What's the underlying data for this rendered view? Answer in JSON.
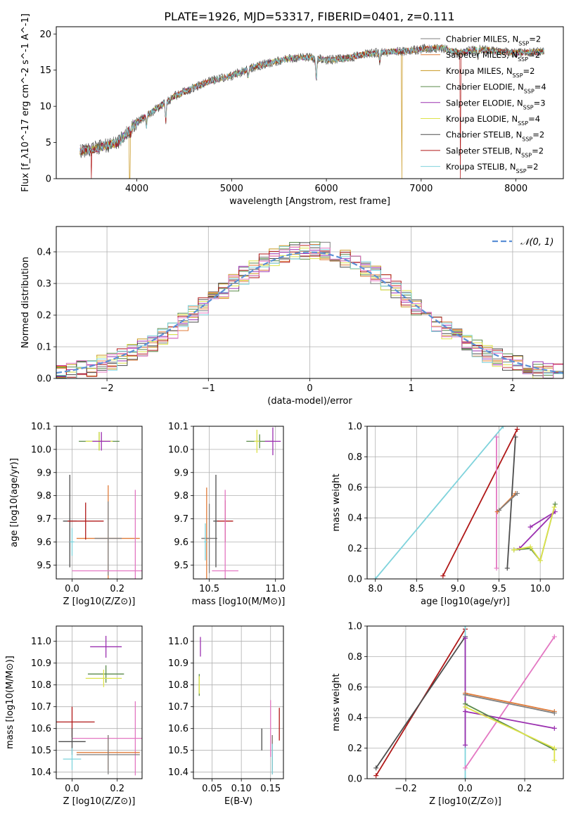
{
  "title": "PLATE=1926, MJD=53317, FIBERID=0401, z=0.111",
  "colors": {
    "chabrier_miles": "#7f7f7f",
    "salpeter_miles": "#e07b39",
    "kroupa_miles": "#c8961e",
    "chabrier_elodie": "#5a8a4a",
    "salpeter_elodie": "#9b30b0",
    "kroupa_elodie": "#dde34a",
    "chabrier_stelib": "#4d4d4d",
    "salpeter_stelib": "#b01818",
    "kroupa_stelib": "#7fd3dc",
    "pink": "#e377c2",
    "gaussian": "#5b8fd6"
  },
  "chart_data": [
    {
      "id": "spectrum",
      "type": "line",
      "xlabel": "wavelength [Angstrom, rest frame]",
      "ylabel": "Flux [f_λ10^-17 erg cm^-2 s^-1 A^-1]",
      "xlim": [
        3150,
        8500
      ],
      "ylim": [
        0,
        21
      ],
      "xticks": [
        "4000",
        "5000",
        "6000",
        "7000",
        "8000"
      ],
      "yticks": [
        "0",
        "5",
        "10",
        "15",
        "20"
      ],
      "legend_position": "right",
      "legend": [
        "Chabrier MILES, N_SSP=2",
        "Salpeter MILES, N_SSP=2",
        "Kroupa MILES, N_SSP=2",
        "Chabrier ELODIE, N_SSP=4",
        "Salpeter ELODIE, N_SSP=3",
        "Kroupa ELODIE, N_SSP=4",
        "Chabrier STELIB, N_SSP=2",
        "Salpeter STELIB, N_SSP=2",
        "Kroupa STELIB, N_SSP=2"
      ],
      "continuum": {
        "x": [
          3400,
          3600,
          3800,
          4000,
          4200,
          4400,
          4600,
          4800,
          5000,
          5200,
          5400,
          5600,
          5800,
          6000,
          6200,
          6400,
          6600,
          6800,
          7000,
          7200,
          7400,
          7600,
          7800,
          8000,
          8200,
          8300
        ],
        "y": [
          3.8,
          4.3,
          5.0,
          7.8,
          9.6,
          11.4,
          12.6,
          13.6,
          14.2,
          15.3,
          16.0,
          16.6,
          16.8,
          16.4,
          16.6,
          17.2,
          17.5,
          17.6,
          17.9,
          18.1,
          17.4,
          17.9,
          17.6,
          17.4,
          17.5,
          17.6
        ]
      },
      "features": [
        {
          "x": 3934,
          "y": 6.2
        },
        {
          "x": 4102,
          "y": 7.3
        },
        {
          "x": 4305,
          "y": 8.0
        },
        {
          "x": 5175,
          "y": 14.2
        },
        {
          "x": 5893,
          "y": 13.8
        },
        {
          "x": 6563,
          "y": 16.2
        },
        {
          "x": 7600,
          "y": 16.8
        }
      ],
      "drops": [
        {
          "x": 3520,
          "series": 7
        },
        {
          "x": 3925,
          "series": 2
        },
        {
          "x": 6795,
          "series": 2
        },
        {
          "x": 7415,
          "series": 7
        }
      ]
    },
    {
      "id": "residuals",
      "type": "step",
      "xlabel": "(data-model)/error",
      "ylabel": "Normed distribution",
      "xlim": [
        -2.5,
        2.5
      ],
      "ylim": [
        0,
        0.48
      ],
      "xticks": [
        "−2",
        "−1",
        "0",
        "1",
        "2"
      ],
      "yticks": [
        "0.0",
        "0.1",
        "0.2",
        "0.3",
        "0.4"
      ],
      "legend": [
        "𝒩(0, 1)"
      ],
      "bin_width": 0.1,
      "bin_start": -2.5,
      "bins": 50
    },
    {
      "id": "age_vs_Z",
      "type": "scatter",
      "xlabel": "Z [log10(Z/Z⊙)]",
      "ylabel": "age [log10(age/yr)]",
      "xlim": [
        -0.07,
        0.31
      ],
      "ylim": [
        9.44,
        10.1
      ],
      "xticks": [
        "0.0",
        "0.2"
      ],
      "yticks": [
        "9.5",
        "9.6",
        "9.7",
        "9.8",
        "9.9",
        "10.0",
        "10.1"
      ],
      "points": [
        {
          "x": 0.12,
          "y": 10.035,
          "xerr": 0.09,
          "yerr": 0.04,
          "c": "chabrier_elodie"
        },
        {
          "x": 0.12,
          "y": 10.035,
          "xerr": 0.06,
          "yerr": 0.04,
          "c": "kroupa_elodie"
        },
        {
          "x": 0.13,
          "y": 10.035,
          "xerr": 0.04,
          "yerr": 0.04,
          "c": "salpeter_elodie"
        },
        {
          "x": 0.16,
          "y": 9.615,
          "xerr": 0.14,
          "yerr": 0.23,
          "c": "salpeter_miles"
        },
        {
          "x": 0.16,
          "y": 9.615,
          "xerr": 0.06,
          "yerr": 0.16,
          "c": "chabrier_miles"
        },
        {
          "x": -0.01,
          "y": 9.69,
          "xerr": 0.03,
          "yerr": 0.2,
          "c": "chabrier_stelib"
        },
        {
          "x": 0.06,
          "y": 9.69,
          "xerr": 0.08,
          "yerr": 0.08,
          "c": "salpeter_stelib"
        },
        {
          "x": 0.0,
          "y": 9.6,
          "xerr": 0.01,
          "yerr": 0.06,
          "c": "kroupa_stelib"
        },
        {
          "x": 0.28,
          "y": 9.475,
          "xerr": 0.28,
          "yerr": 0.35,
          "c": "pink"
        }
      ]
    },
    {
      "id": "age_vs_mass",
      "type": "scatter",
      "xlabel": "mass [log10(M/M⊙)]",
      "ylabel": "",
      "xlim": [
        10.38,
        11.06
      ],
      "ylim": [
        9.44,
        10.1
      ],
      "xticks": [
        "10.5",
        "11.0"
      ],
      "yticks": [
        "9.5",
        "9.6",
        "9.7",
        "9.8",
        "9.9",
        "10.0",
        "10.1"
      ],
      "points": [
        {
          "x": 10.88,
          "y": 10.035,
          "xerr": 0.1,
          "yerr": 0.03,
          "c": "chabrier_elodie"
        },
        {
          "x": 10.86,
          "y": 10.035,
          "xerr": 0.02,
          "yerr": 0.05,
          "c": "kroupa_elodie"
        },
        {
          "x": 10.98,
          "y": 10.035,
          "xerr": 0.06,
          "yerr": 0.06,
          "c": "salpeter_elodie"
        },
        {
          "x": 10.48,
          "y": 9.615,
          "xerr": 0.03,
          "yerr": 0.22,
          "c": "salpeter_miles"
        },
        {
          "x": 10.5,
          "y": 9.615,
          "xerr": 0.06,
          "yerr": 0.15,
          "c": "chabrier_miles"
        },
        {
          "x": 10.55,
          "y": 9.69,
          "xerr": 0.02,
          "yerr": 0.2,
          "c": "chabrier_stelib"
        },
        {
          "x": 10.62,
          "y": 9.69,
          "xerr": 0.06,
          "yerr": 0.09,
          "c": "salpeter_stelib"
        },
        {
          "x": 10.47,
          "y": 9.6,
          "xerr": 0.01,
          "yerr": 0.08,
          "c": "kroupa_stelib"
        },
        {
          "x": 10.62,
          "y": 9.475,
          "xerr": 0.1,
          "yerr": 0.35,
          "c": "pink"
        }
      ]
    },
    {
      "id": "weight_vs_age",
      "type": "line",
      "xlabel": "age [log10(age/yr)]",
      "ylabel": "mass weight",
      "xlim": [
        7.9,
        10.28
      ],
      "ylim": [
        0,
        1.0
      ],
      "xticks": [
        "8.0",
        "8.5",
        "9.0",
        "9.5",
        "10.0"
      ],
      "yticks": [
        "0.0",
        "0.2",
        "0.4",
        "0.6",
        "0.8",
        "1.0"
      ],
      "series": [
        {
          "c": "kroupa_stelib",
          "x": [
            8.0,
            9.55
          ],
          "y": [
            0.0,
            1.0
          ]
        },
        {
          "c": "salpeter_stelib",
          "x": [
            8.82,
            9.72
          ],
          "y": [
            0.02,
            0.98
          ]
        },
        {
          "c": "chabrier_stelib",
          "x": [
            9.6,
            9.7
          ],
          "y": [
            0.07,
            0.93
          ]
        },
        {
          "c": "pink",
          "x": [
            9.47,
            9.47
          ],
          "y": [
            0.07,
            0.93
          ]
        },
        {
          "c": "salpeter_miles",
          "x": [
            9.48,
            9.7
          ],
          "y": [
            0.44,
            0.56
          ]
        },
        {
          "c": "chabrier_miles",
          "x": [
            9.5,
            9.72
          ],
          "y": [
            0.45,
            0.56
          ]
        },
        {
          "c": "salpeter_elodie",
          "x": [
            9.88,
            10.18,
            9.75
          ],
          "y": [
            0.34,
            0.44,
            0.2
          ]
        },
        {
          "c": "chabrier_elodie",
          "x": [
            9.68,
            9.88,
            10.0,
            10.18
          ],
          "y": [
            0.19,
            0.2,
            0.12,
            0.49
          ]
        },
        {
          "c": "kroupa_elodie",
          "x": [
            9.68,
            9.88,
            10.0,
            10.17
          ],
          "y": [
            0.19,
            0.21,
            0.12,
            0.47
          ]
        }
      ]
    },
    {
      "id": "mass_vs_Z",
      "type": "scatter",
      "xlabel": "Z [log10(Z/Z⊙)]",
      "ylabel": "mass [log10(M/M⊙)]",
      "xlim": [
        -0.07,
        0.31
      ],
      "ylim": [
        10.37,
        11.07
      ],
      "xticks": [
        "0.0",
        "0.2"
      ],
      "yticks": [
        "10.4",
        "10.5",
        "10.6",
        "10.7",
        "10.8",
        "10.9",
        "11.0"
      ],
      "points": [
        {
          "x": 0.15,
          "y": 10.975,
          "xerr": 0.07,
          "yerr": 0.05,
          "c": "salpeter_elodie"
        },
        {
          "x": 0.15,
          "y": 10.85,
          "xerr": 0.08,
          "yerr": 0.04,
          "c": "chabrier_elodie"
        },
        {
          "x": 0.14,
          "y": 10.83,
          "xerr": 0.08,
          "yerr": 0.04,
          "c": "kroupa_elodie"
        },
        {
          "x": 0.0,
          "y": 10.63,
          "xerr": 0.1,
          "yerr": 0.07,
          "c": "salpeter_stelib"
        },
        {
          "x": 0.28,
          "y": 10.555,
          "xerr": 0.28,
          "yerr": 0.17,
          "c": "pink"
        },
        {
          "x": 0.0,
          "y": 10.54,
          "xerr": 0.06,
          "yerr": 0.06,
          "c": "chabrier_stelib"
        },
        {
          "x": 0.16,
          "y": 10.49,
          "xerr": 0.14,
          "yerr": 0.08,
          "c": "salpeter_miles"
        },
        {
          "x": 0.16,
          "y": 10.48,
          "xerr": 0.14,
          "yerr": 0.09,
          "c": "chabrier_miles"
        },
        {
          "x": 0.0,
          "y": 10.46,
          "xerr": 0.04,
          "yerr": 0.05,
          "c": "kroupa_stelib"
        }
      ]
    },
    {
      "id": "mass_vs_ebv",
      "type": "scatter",
      "xlabel": "E(B-V)",
      "ylabel": "",
      "xlim": [
        0.018,
        0.172
      ],
      "ylim": [
        10.37,
        11.07
      ],
      "xticks": [
        "0.05",
        "0.10",
        "0.15"
      ],
      "yticks": [
        "10.4",
        "10.5",
        "10.6",
        "10.7",
        "10.8",
        "10.9",
        "11.0"
      ],
      "points": [
        {
          "x": 0.03,
          "y": 10.975,
          "xerr": 0.0,
          "yerr": 0.045,
          "c": "salpeter_elodie"
        },
        {
          "x": 0.028,
          "y": 10.8,
          "xerr": 0.0,
          "yerr": 0.05,
          "c": "chabrier_elodie"
        },
        {
          "x": 0.028,
          "y": 10.8,
          "xerr": 0.0,
          "yerr": 0.04,
          "c": "kroupa_elodie"
        },
        {
          "x": 0.165,
          "y": 10.62,
          "xerr": 0.0,
          "yerr": 0.075,
          "c": "salpeter_stelib"
        },
        {
          "x": 0.15,
          "y": 10.6,
          "xerr": 0.0,
          "yerr": 0.13,
          "c": "pink"
        },
        {
          "x": 0.135,
          "y": 10.55,
          "xerr": 0.0,
          "yerr": 0.05,
          "c": "chabrier_stelib"
        },
        {
          "x": 0.153,
          "y": 10.49,
          "xerr": 0.0,
          "yerr": 0.08,
          "c": "salpeter_miles"
        },
        {
          "x": 0.153,
          "y": 10.48,
          "xerr": 0.0,
          "yerr": 0.09,
          "c": "chabrier_miles"
        },
        {
          "x": 0.153,
          "y": 10.46,
          "xerr": 0.0,
          "yerr": 0.07,
          "c": "kroupa_stelib"
        }
      ]
    },
    {
      "id": "weight_vs_Z",
      "type": "line",
      "xlabel": "Z [log10(Z/Z⊙)]",
      "ylabel": "mass weight",
      "xlim": [
        -0.33,
        0.33
      ],
      "ylim": [
        0,
        1.0
      ],
      "xticks": [
        "−0.2",
        "0.0",
        "0.2"
      ],
      "yticks": [
        "0.0",
        "0.2",
        "0.4",
        "0.6",
        "0.8",
        "1.0"
      ],
      "series": [
        {
          "c": "salpeter_stelib",
          "x": [
            -0.3,
            0.0
          ],
          "y": [
            0.02,
            0.98
          ]
        },
        {
          "c": "chabrier_stelib",
          "x": [
            -0.3,
            0.0
          ],
          "y": [
            0.07,
            0.93
          ]
        },
        {
          "c": "kroupa_stelib",
          "x": [
            0.0,
            0.0
          ],
          "y": [
            0.0,
            1.0
          ]
        },
        {
          "c": "salpeter_elodie",
          "x": [
            0.0,
            0.0
          ],
          "y": [
            0.22,
            0.92
          ]
        },
        {
          "c": "pink",
          "x": [
            0.0,
            0.3
          ],
          "y": [
            0.07,
            0.93
          ]
        },
        {
          "c": "salpeter_miles",
          "x": [
            0.0,
            0.3
          ],
          "y": [
            0.56,
            0.44
          ]
        },
        {
          "c": "chabrier_miles",
          "x": [
            0.0,
            0.3
          ],
          "y": [
            0.55,
            0.43
          ]
        },
        {
          "c": "salpeter_elodie",
          "x": [
            0.0,
            0.3
          ],
          "y": [
            0.44,
            0.33
          ]
        },
        {
          "c": "chabrier_elodie",
          "x": [
            0.0,
            0.3
          ],
          "y": [
            0.49,
            0.19
          ]
        },
        {
          "c": "kroupa_elodie",
          "x": [
            0.0,
            0.3,
            0.3
          ],
          "y": [
            0.47,
            0.2,
            0.12
          ]
        }
      ]
    }
  ]
}
